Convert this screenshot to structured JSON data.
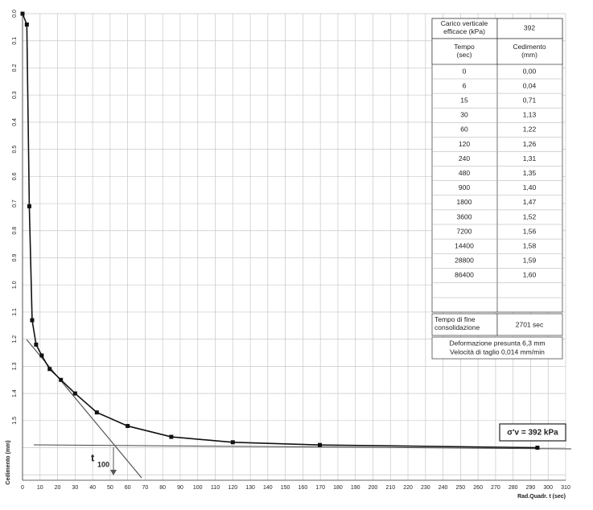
{
  "chart_data": {
    "type": "line",
    "x_label": "Rad.Quadr. t (sec)",
    "y_label": "Cedimento (mm)",
    "xlim": [
      0,
      310
    ],
    "xticks": [
      0,
      10,
      20,
      30,
      40,
      50,
      60,
      70,
      80,
      90,
      100,
      110,
      120,
      130,
      140,
      150,
      160,
      170,
      180,
      190,
      200,
      210,
      220,
      230,
      240,
      250,
      260,
      270,
      280,
      290,
      300,
      310
    ],
    "ylim": [
      0,
      1.72
    ],
    "yticks": [
      {
        "value": 0,
        "label": "0.0"
      },
      0.1,
      0.2,
      0.3,
      0.4,
      0.5,
      0.6,
      0.7,
      0.8,
      0.9,
      {
        "value": 1,
        "label": "1.0"
      },
      1.1,
      1.2,
      1.3,
      1.4,
      1.5
    ],
    "y_inverted": true,
    "grid": true,
    "series": [
      {
        "color": "#111111",
        "x": [
          0,
          2.45,
          3.87,
          5.48,
          7.75,
          10.95,
          15.5,
          21.9,
          30,
          42.4,
          60,
          84.9,
          120,
          169.7,
          293.9
        ],
        "values": [
          0,
          0.04,
          0.71,
          1.13,
          1.22,
          1.26,
          1.31,
          1.35,
          1.4,
          1.47,
          1.52,
          1.56,
          1.58,
          1.59,
          1.6
        ]
      }
    ],
    "annotations": {
      "t100": "t",
      "t100_sub": "100",
      "sigma": "σ'v = 392 kPa"
    },
    "table": {
      "load_label": "Carico verticale efficace (kPa)",
      "load_value": "392",
      "col_time": "Tempo (sec)",
      "col_settle": "Cedimento (mm)",
      "rows": [
        [
          "0",
          "0,00"
        ],
        [
          "6",
          "0,04"
        ],
        [
          "15",
          "0,71"
        ],
        [
          "30",
          "1,13"
        ],
        [
          "60",
          "1,22"
        ],
        [
          "120",
          "1,26"
        ],
        [
          "240",
          "1,31"
        ],
        [
          "480",
          "1,35"
        ],
        [
          "900",
          "1,40"
        ],
        [
          "1800",
          "1,47"
        ],
        [
          "3600",
          "1,52"
        ],
        [
          "7200",
          "1,56"
        ],
        [
          "14400",
          "1,58"
        ],
        [
          "28800",
          "1,59"
        ],
        [
          "86400",
          "1,60"
        ]
      ],
      "end_label": "Tempo di fine consolidazione",
      "end_value": "2701  sec",
      "note1": "Deformazione presunta 6,3 mm",
      "note2": "Velocità di taglio 0,014 mm/min"
    }
  }
}
